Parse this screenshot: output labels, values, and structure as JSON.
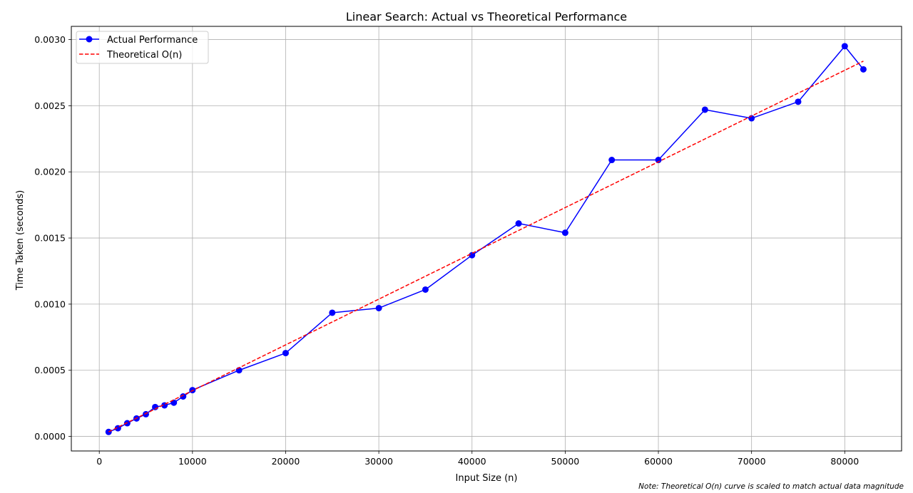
{
  "chart_data": {
    "type": "line",
    "title": "Linear Search: Actual vs Theoretical Performance",
    "xlabel": "Input Size (n)",
    "ylabel": "Time Taken (seconds)",
    "xlim": [
      -3000,
      86100
    ],
    "ylim": [
      -0.00011,
      0.0031
    ],
    "xticks": [
      0,
      10000,
      20000,
      30000,
      40000,
      50000,
      60000,
      70000,
      80000
    ],
    "xtick_labels": [
      "0",
      "10000",
      "20000",
      "30000",
      "40000",
      "50000",
      "60000",
      "70000",
      "80000"
    ],
    "yticks": [
      0,
      0.0005,
      0.001,
      0.0015,
      0.002,
      0.0025,
      0.003
    ],
    "ytick_labels": [
      "0.0000",
      "0.0005",
      "0.0010",
      "0.0015",
      "0.0020",
      "0.0025",
      "0.0030"
    ],
    "grid": true,
    "legend_position": "top-left",
    "x": [
      1000,
      2000,
      3000,
      4000,
      5000,
      6000,
      7000,
      8000,
      9000,
      10000,
      15000,
      20000,
      25000,
      30000,
      35000,
      40000,
      45000,
      50000,
      55000,
      60000,
      65000,
      70000,
      75000,
      80000,
      82000
    ],
    "series": [
      {
        "name": "Actual Performance",
        "color": "#0000ff",
        "style": "solid-with-circle-markers",
        "values": [
          3.4e-05,
          6.2e-05,
          0.0001,
          0.000136,
          0.000168,
          0.000222,
          0.000235,
          0.000255,
          0.000302,
          0.00035,
          0.0005,
          0.00063,
          0.000935,
          0.00097,
          0.00111,
          0.00137,
          0.00161,
          0.00154,
          0.00209,
          0.00209,
          0.00247,
          0.002405,
          0.00253,
          0.00295,
          0.002775
        ]
      },
      {
        "name": "Theoretical O(n)",
        "color": "#ff0000",
        "style": "dashed",
        "values": [
          3.46e-05,
          6.92e-05,
          0.0001038,
          0.0001384,
          0.000173,
          0.0002076,
          0.0002422,
          0.0002768,
          0.0003114,
          0.000346,
          0.000519,
          0.000692,
          0.000865,
          0.001038,
          0.001211,
          0.001384,
          0.001557,
          0.00173,
          0.001903,
          0.002076,
          0.002249,
          0.002422,
          0.002595,
          0.002768,
          0.0028372
        ]
      }
    ],
    "annotation": "Note: Theoretical O(n) curve is scaled to match actual data magnitude"
  }
}
